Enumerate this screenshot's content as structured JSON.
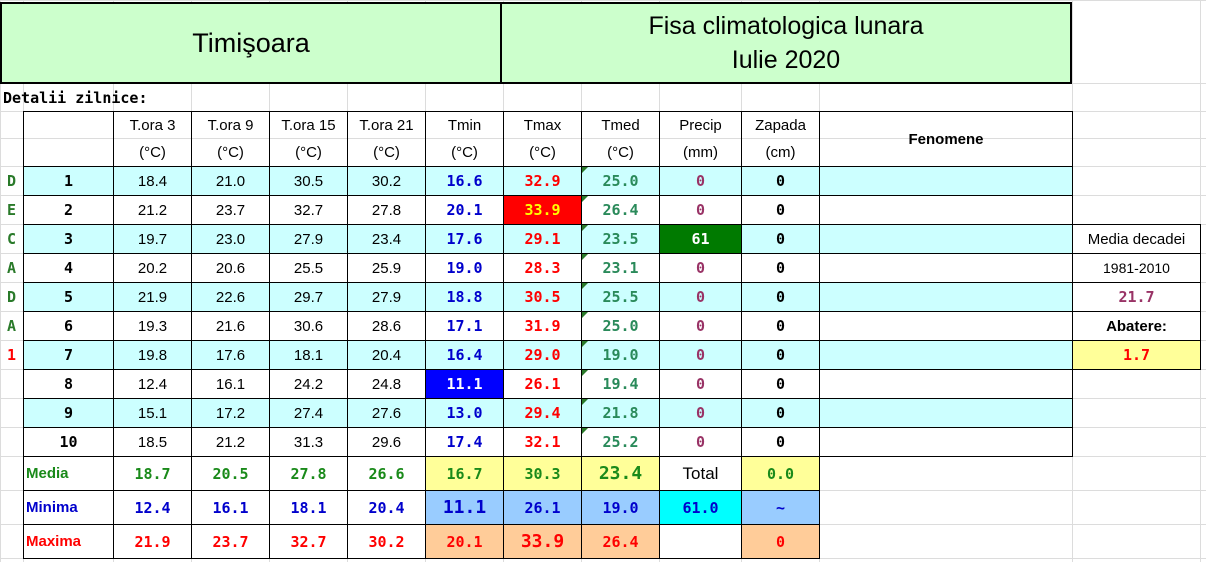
{
  "title_left": "Timişoara",
  "title_right_line1": "Fisa climatologica lunara",
  "title_right_line2": "Iulie 2020",
  "details_label": "Detalii zilnice:",
  "headers": [
    {
      "name": "T.ora 3",
      "unit": "(°C)"
    },
    {
      "name": "T.ora 9",
      "unit": "(°C)"
    },
    {
      "name": "T.ora 15",
      "unit": "(°C)"
    },
    {
      "name": "T.ora 21",
      "unit": "(°C)"
    },
    {
      "name": "Tmin",
      "unit": "(°C)"
    },
    {
      "name": "Tmax",
      "unit": "(°C)"
    },
    {
      "name": "Tmed",
      "unit": "(°C)"
    },
    {
      "name": "Precip",
      "unit": "(mm)"
    },
    {
      "name": "Zapada",
      "unit": "(cm)"
    }
  ],
  "fenomene_label": "Fenomene",
  "decada_letters": [
    "D",
    "E",
    "C",
    "A",
    "D",
    "A",
    "1"
  ],
  "rows": [
    {
      "day": "1",
      "t3": "18.4",
      "t9": "21.0",
      "t15": "30.5",
      "t21": "30.2",
      "tmin": "16.6",
      "tmax": "32.9",
      "tmed": "25.0",
      "precip": "0",
      "zapada": "0"
    },
    {
      "day": "2",
      "t3": "21.2",
      "t9": "23.7",
      "t15": "32.7",
      "t21": "27.8",
      "tmin": "20.1",
      "tmax": "33.9",
      "tmed": "26.4",
      "precip": "0",
      "zapada": "0"
    },
    {
      "day": "3",
      "t3": "19.7",
      "t9": "23.0",
      "t15": "27.9",
      "t21": "23.4",
      "tmin": "17.6",
      "tmax": "29.1",
      "tmed": "23.5",
      "precip": "61",
      "zapada": "0"
    },
    {
      "day": "4",
      "t3": "20.2",
      "t9": "20.6",
      "t15": "25.5",
      "t21": "25.9",
      "tmin": "19.0",
      "tmax": "28.3",
      "tmed": "23.1",
      "precip": "0",
      "zapada": "0"
    },
    {
      "day": "5",
      "t3": "21.9",
      "t9": "22.6",
      "t15": "29.7",
      "t21": "27.9",
      "tmin": "18.8",
      "tmax": "30.5",
      "tmed": "25.5",
      "precip": "0",
      "zapada": "0"
    },
    {
      "day": "6",
      "t3": "19.3",
      "t9": "21.6",
      "t15": "30.6",
      "t21": "28.6",
      "tmin": "17.1",
      "tmax": "31.9",
      "tmed": "25.0",
      "precip": "0",
      "zapada": "0"
    },
    {
      "day": "7",
      "t3": "19.8",
      "t9": "17.6",
      "t15": "18.1",
      "t21": "20.4",
      "tmin": "16.4",
      "tmax": "29.0",
      "tmed": "19.0",
      "precip": "0",
      "zapada": "0"
    },
    {
      "day": "8",
      "t3": "12.4",
      "t9": "16.1",
      "t15": "24.2",
      "t21": "24.8",
      "tmin": "11.1",
      "tmax": "26.1",
      "tmed": "19.4",
      "precip": "0",
      "zapada": "0"
    },
    {
      "day": "9",
      "t3": "15.1",
      "t9": "17.2",
      "t15": "27.4",
      "t21": "27.6",
      "tmin": "13.0",
      "tmax": "29.4",
      "tmed": "21.8",
      "precip": "0",
      "zapada": "0"
    },
    {
      "day": "10",
      "t3": "18.5",
      "t9": "21.2",
      "t15": "31.3",
      "t21": "29.6",
      "tmin": "17.4",
      "tmax": "32.1",
      "tmed": "25.2",
      "precip": "0",
      "zapada": "0"
    }
  ],
  "summary": {
    "media": {
      "label": "Media",
      "t3": "18.7",
      "t9": "20.5",
      "t15": "27.8",
      "t21": "26.6",
      "tmin": "16.7",
      "tmax": "30.3",
      "tmed": "23.4",
      "precip": "Total",
      "zapada": "0.0"
    },
    "minima": {
      "label": "Minima",
      "t3": "12.4",
      "t9": "16.1",
      "t15": "18.1",
      "t21": "20.4",
      "tmin": "11.1",
      "tmax": "26.1",
      "tmed": "19.0",
      "precip": "61.0",
      "zapada": "~"
    },
    "maxima": {
      "label": "Maxima",
      "t3": "21.9",
      "t9": "23.7",
      "t15": "32.7",
      "t21": "30.2",
      "tmin": "20.1",
      "tmax": "33.9",
      "tmed": "26.4",
      "precip": "",
      "zapada": "0"
    }
  },
  "side": {
    "media_decadei": "Media decadei",
    "period": "1981-2010",
    "value": "21.7",
    "abatere_label": "Abatere:",
    "abatere_value": "1.7"
  },
  "colors": {
    "title_bg": "#ccffcc",
    "row_alt": "#ccffff",
    "tmin": "#0000cc",
    "tmax": "#ff0000",
    "tmed": "#2a8a5a",
    "precip": "#993366",
    "highlight_red": "#ff0000",
    "highlight_blue": "#0000ff",
    "highlight_green": "#007a00",
    "yellow": "#ffff99",
    "blue_light": "#99ccff",
    "orange": "#ffcc99",
    "cyan": "#00ffff"
  }
}
